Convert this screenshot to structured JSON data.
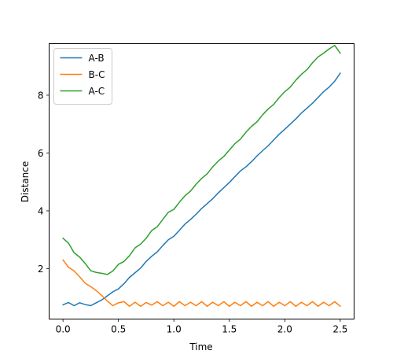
{
  "chart_data": {
    "type": "line",
    "title": "",
    "xlabel": "Time",
    "ylabel": "Distance",
    "xlim": [
      -0.125,
      2.625
    ],
    "ylim": [
      0.258,
      9.78
    ],
    "xticks": [
      0.0,
      0.5,
      1.0,
      1.5,
      2.0,
      2.5
    ],
    "xtick_labels": [
      "0.0",
      "0.5",
      "1.0",
      "1.5",
      "2.0",
      "2.5"
    ],
    "yticks": [
      2,
      4,
      6,
      8
    ],
    "ytick_labels": [
      "2",
      "4",
      "6",
      "8"
    ],
    "grid": false,
    "legend_position": "top-left",
    "series": [
      {
        "name": "A-B",
        "color": "#1f77b4",
        "x": [
          0.0,
          0.05,
          0.1,
          0.15,
          0.2,
          0.25,
          0.3,
          0.35,
          0.4,
          0.45,
          0.5,
          0.55,
          0.6,
          0.65,
          0.7,
          0.75,
          0.8,
          0.85,
          0.9,
          0.95,
          1.0,
          1.05,
          1.1,
          1.15,
          1.2,
          1.25,
          1.3,
          1.35,
          1.4,
          1.45,
          1.5,
          1.55,
          1.6,
          1.65,
          1.7,
          1.75,
          1.8,
          1.85,
          1.9,
          1.95,
          2.0,
          2.05,
          2.1,
          2.15,
          2.2,
          2.25,
          2.3,
          2.35,
          2.4,
          2.45,
          2.5
        ],
        "y": [
          0.75,
          0.83,
          0.72,
          0.82,
          0.76,
          0.72,
          0.82,
          0.92,
          1.06,
          1.2,
          1.3,
          1.48,
          1.7,
          1.86,
          2.02,
          2.25,
          2.43,
          2.58,
          2.8,
          3.0,
          3.12,
          3.33,
          3.54,
          3.7,
          3.88,
          4.08,
          4.25,
          4.42,
          4.62,
          4.8,
          4.98,
          5.18,
          5.38,
          5.52,
          5.7,
          5.9,
          6.08,
          6.25,
          6.45,
          6.65,
          6.82,
          7.0,
          7.18,
          7.38,
          7.55,
          7.72,
          7.92,
          8.12,
          8.28,
          8.48,
          8.76
        ]
      },
      {
        "name": "B-C",
        "color": "#ff7f0e",
        "x": [
          0.0,
          0.05,
          0.1,
          0.15,
          0.2,
          0.25,
          0.3,
          0.35,
          0.4,
          0.45,
          0.5,
          0.55,
          0.6,
          0.65,
          0.7,
          0.75,
          0.8,
          0.85,
          0.9,
          0.95,
          1.0,
          1.05,
          1.1,
          1.15,
          1.2,
          1.25,
          1.3,
          1.35,
          1.4,
          1.45,
          1.5,
          1.55,
          1.6,
          1.65,
          1.7,
          1.75,
          1.8,
          1.85,
          1.9,
          1.95,
          2.0,
          2.05,
          2.1,
          2.15,
          2.2,
          2.25,
          2.3,
          2.35,
          2.4,
          2.45,
          2.5
        ],
        "y": [
          2.3,
          2.05,
          1.92,
          1.72,
          1.5,
          1.38,
          1.24,
          1.07,
          0.88,
          0.72,
          0.82,
          0.86,
          0.7,
          0.84,
          0.7,
          0.83,
          0.74,
          0.86,
          0.72,
          0.84,
          0.7,
          0.86,
          0.72,
          0.84,
          0.72,
          0.86,
          0.7,
          0.84,
          0.72,
          0.86,
          0.7,
          0.84,
          0.72,
          0.86,
          0.7,
          0.84,
          0.72,
          0.86,
          0.7,
          0.84,
          0.72,
          0.86,
          0.7,
          0.84,
          0.72,
          0.86,
          0.7,
          0.84,
          0.72,
          0.86,
          0.7
        ]
      },
      {
        "name": "A-C",
        "color": "#2ca02c",
        "x": [
          0.0,
          0.05,
          0.1,
          0.15,
          0.2,
          0.25,
          0.3,
          0.35,
          0.4,
          0.45,
          0.5,
          0.55,
          0.6,
          0.65,
          0.7,
          0.75,
          0.8,
          0.85,
          0.9,
          0.95,
          1.0,
          1.05,
          1.1,
          1.15,
          1.2,
          1.25,
          1.3,
          1.35,
          1.4,
          1.45,
          1.5,
          1.55,
          1.6,
          1.65,
          1.7,
          1.75,
          1.8,
          1.85,
          1.9,
          1.95,
          2.0,
          2.05,
          2.1,
          2.15,
          2.2,
          2.25,
          2.3,
          2.35,
          2.4,
          2.45,
          2.5
        ],
        "y": [
          3.05,
          2.88,
          2.55,
          2.4,
          2.18,
          1.93,
          1.87,
          1.84,
          1.8,
          1.92,
          2.15,
          2.25,
          2.45,
          2.72,
          2.85,
          3.05,
          3.32,
          3.45,
          3.7,
          3.95,
          4.05,
          4.3,
          4.52,
          4.68,
          4.92,
          5.12,
          5.28,
          5.52,
          5.72,
          5.88,
          6.1,
          6.32,
          6.48,
          6.72,
          6.92,
          7.08,
          7.32,
          7.52,
          7.68,
          7.92,
          8.12,
          8.28,
          8.52,
          8.72,
          8.88,
          9.12,
          9.32,
          9.45,
          9.6,
          9.72,
          9.45
        ]
      }
    ]
  }
}
